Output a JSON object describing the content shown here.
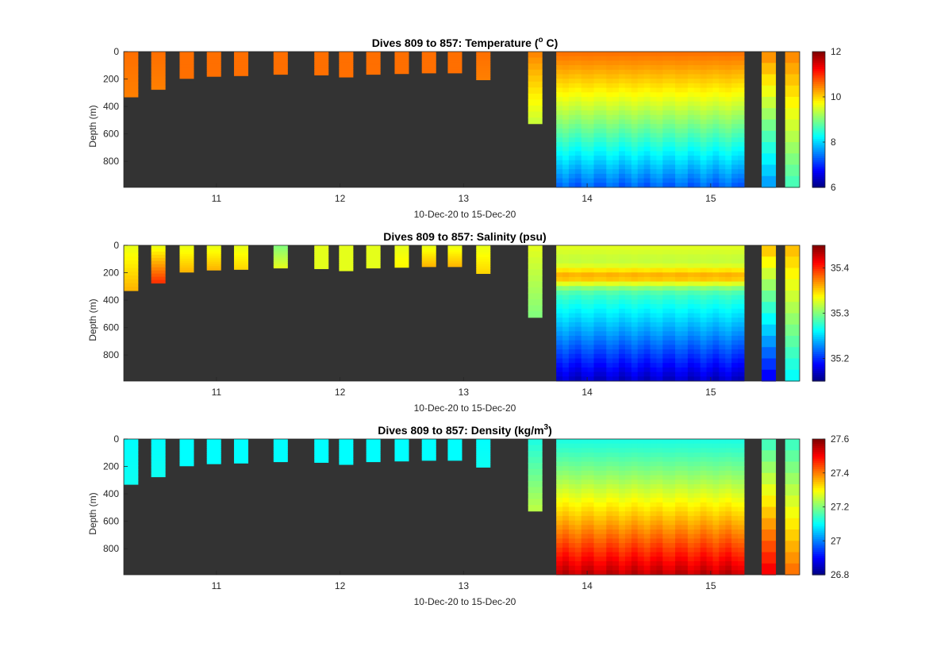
{
  "chart_data": [
    {
      "type": "heatmap",
      "title_main": "Dives 809 to 857: Temperature (",
      "title_sup": "o",
      "title_end": " C)",
      "xlabel": "10-Dec-20 to 15-Dec-20",
      "ylabel": "Depth (m)",
      "xlim": [
        10.25,
        15.72
      ],
      "ylim": [
        0,
        990
      ],
      "y_reversed": true,
      "xticks": [
        11,
        12,
        13,
        14,
        15
      ],
      "yticks": [
        0,
        200,
        400,
        600,
        800
      ],
      "colorbar": {
        "min": 6,
        "max": 12,
        "ticks": [
          6,
          8,
          10,
          12
        ],
        "colormap": "jet"
      },
      "background_color": "#333333",
      "profiles": [
        {
          "t": 10.31,
          "max_depth": 330,
          "value_surface": 10.6,
          "value_bottom": 10.5
        },
        {
          "t": 10.53,
          "max_depth": 275,
          "value_surface": 10.6,
          "value_bottom": 10.5
        },
        {
          "t": 10.76,
          "max_depth": 195,
          "value_surface": 10.6,
          "value_bottom": 10.6
        },
        {
          "t": 10.98,
          "max_depth": 180,
          "value_surface": 10.6,
          "value_bottom": 10.6
        },
        {
          "t": 11.2,
          "max_depth": 175,
          "value_surface": 10.6,
          "value_bottom": 10.6
        },
        {
          "t": 11.52,
          "max_depth": 165,
          "value_surface": 10.6,
          "value_bottom": 10.6
        },
        {
          "t": 11.85,
          "max_depth": 170,
          "value_surface": 10.6,
          "value_bottom": 10.6
        },
        {
          "t": 12.05,
          "max_depth": 185,
          "value_surface": 10.6,
          "value_bottom": 10.6
        },
        {
          "t": 12.27,
          "max_depth": 165,
          "value_surface": 10.6,
          "value_bottom": 10.6
        },
        {
          "t": 12.5,
          "max_depth": 160,
          "value_surface": 10.6,
          "value_bottom": 10.6
        },
        {
          "t": 12.72,
          "max_depth": 155,
          "value_surface": 10.6,
          "value_bottom": 10.6
        },
        {
          "t": 12.93,
          "max_depth": 155,
          "value_surface": 10.6,
          "value_bottom": 10.6
        },
        {
          "t": 13.16,
          "max_depth": 205,
          "value_surface": 10.6,
          "value_bottom": 10.5
        },
        {
          "t": 13.58,
          "max_depth": 525,
          "value_surface": 10.5,
          "value_bottom": 9.4
        },
        {
          "t": 15.47,
          "max_depth": 990,
          "value_surface": 10.5,
          "value_bottom": 7.6
        },
        {
          "t": 15.66,
          "max_depth": 990,
          "value_surface": 10.5,
          "value_bottom": 8.6
        }
      ],
      "dense_block": {
        "t_start": 13.75,
        "t_end": 15.27,
        "max_depth": 990,
        "value_surface": 10.6,
        "value_bottom": 7.3
      }
    },
    {
      "type": "heatmap",
      "title_main": "Dives 809 to 857: Salinity (psu)",
      "title_sup": "",
      "title_end": "",
      "xlabel": "10-Dec-20 to 15-Dec-20",
      "ylabel": "Depth (m)",
      "xlim": [
        10.25,
        15.72
      ],
      "ylim": [
        0,
        990
      ],
      "y_reversed": true,
      "xticks": [
        11,
        12,
        13,
        14,
        15
      ],
      "yticks": [
        0,
        200,
        400,
        600,
        800
      ],
      "colorbar": {
        "min": 35.15,
        "max": 35.45,
        "ticks": [
          35.2,
          35.3,
          35.4
        ],
        "colormap": "jet"
      },
      "background_color": "#333333",
      "profiles": [
        {
          "t": 10.31,
          "max_depth": 330,
          "value_surface": 35.33,
          "value_bottom": 35.36
        },
        {
          "t": 10.53,
          "max_depth": 275,
          "value_surface": 35.33,
          "value_bottom": 35.4
        },
        {
          "t": 10.76,
          "max_depth": 195,
          "value_surface": 35.33,
          "value_bottom": 35.36
        },
        {
          "t": 10.98,
          "max_depth": 180,
          "value_surface": 35.33,
          "value_bottom": 35.36
        },
        {
          "t": 11.2,
          "max_depth": 175,
          "value_surface": 35.33,
          "value_bottom": 35.35
        },
        {
          "t": 11.52,
          "max_depth": 165,
          "value_surface": 35.3,
          "value_bottom": 35.33
        },
        {
          "t": 11.85,
          "max_depth": 170,
          "value_surface": 35.33,
          "value_bottom": 35.33
        },
        {
          "t": 12.05,
          "max_depth": 185,
          "value_surface": 35.33,
          "value_bottom": 35.33
        },
        {
          "t": 12.27,
          "max_depth": 165,
          "value_surface": 35.33,
          "value_bottom": 35.33
        },
        {
          "t": 12.5,
          "max_depth": 160,
          "value_surface": 35.33,
          "value_bottom": 35.34
        },
        {
          "t": 12.72,
          "max_depth": 155,
          "value_surface": 35.33,
          "value_bottom": 35.36
        },
        {
          "t": 12.93,
          "max_depth": 155,
          "value_surface": 35.33,
          "value_bottom": 35.36
        },
        {
          "t": 13.16,
          "max_depth": 205,
          "value_surface": 35.33,
          "value_bottom": 35.35
        },
        {
          "t": 13.58,
          "max_depth": 525,
          "value_surface": 35.33,
          "value_bottom": 35.3
        },
        {
          "t": 15.47,
          "max_depth": 990,
          "value_surface": 35.36,
          "value_bottom": 35.18
        },
        {
          "t": 15.66,
          "max_depth": 990,
          "value_surface": 35.36,
          "value_bottom": 35.26
        }
      ],
      "dense_block": {
        "t_start": 13.75,
        "t_end": 15.27,
        "max_depth": 990,
        "value_surface": 35.33,
        "value_bottom": 35.17,
        "max_layer_depth": 230,
        "max_layer_value": 35.39
      }
    },
    {
      "type": "heatmap",
      "title_main": "Dives 809 to 857: Density (kg/m",
      "title_sup": "3",
      "title_end": ")",
      "xlabel": "10-Dec-20 to 15-Dec-20",
      "ylabel": "Depth (m)",
      "xlim": [
        10.25,
        15.72
      ],
      "ylim": [
        0,
        990
      ],
      "y_reversed": true,
      "xticks": [
        11,
        12,
        13,
        14,
        15
      ],
      "yticks": [
        0,
        200,
        400,
        600,
        800
      ],
      "colorbar": {
        "min": 26.8,
        "max": 27.6,
        "ticks": [
          26.8,
          27,
          27.2,
          27.4,
          27.6
        ],
        "colormap": "jet"
      },
      "background_color": "#333333",
      "profiles": [
        {
          "t": 10.31,
          "max_depth": 330,
          "value_surface": 27.1,
          "value_bottom": 27.11
        },
        {
          "t": 10.53,
          "max_depth": 275,
          "value_surface": 27.1,
          "value_bottom": 27.11
        },
        {
          "t": 10.76,
          "max_depth": 195,
          "value_surface": 27.1,
          "value_bottom": 27.1
        },
        {
          "t": 10.98,
          "max_depth": 180,
          "value_surface": 27.1,
          "value_bottom": 27.1
        },
        {
          "t": 11.2,
          "max_depth": 175,
          "value_surface": 27.1,
          "value_bottom": 27.1
        },
        {
          "t": 11.52,
          "max_depth": 165,
          "value_surface": 27.1,
          "value_bottom": 27.1
        },
        {
          "t": 11.85,
          "max_depth": 170,
          "value_surface": 27.1,
          "value_bottom": 27.1
        },
        {
          "t": 12.05,
          "max_depth": 185,
          "value_surface": 27.1,
          "value_bottom": 27.1
        },
        {
          "t": 12.27,
          "max_depth": 165,
          "value_surface": 27.1,
          "value_bottom": 27.1
        },
        {
          "t": 12.5,
          "max_depth": 160,
          "value_surface": 27.1,
          "value_bottom": 27.1
        },
        {
          "t": 12.72,
          "max_depth": 155,
          "value_surface": 27.1,
          "value_bottom": 27.1
        },
        {
          "t": 12.93,
          "max_depth": 155,
          "value_surface": 27.1,
          "value_bottom": 27.1
        },
        {
          "t": 13.16,
          "max_depth": 205,
          "value_surface": 27.1,
          "value_bottom": 27.11
        },
        {
          "t": 13.58,
          "max_depth": 525,
          "value_surface": 27.12,
          "value_bottom": 27.25
        },
        {
          "t": 15.47,
          "max_depth": 990,
          "value_surface": 27.14,
          "value_bottom": 27.52
        },
        {
          "t": 15.66,
          "max_depth": 990,
          "value_surface": 27.14,
          "value_bottom": 27.42
        }
      ],
      "dense_block": {
        "t_start": 13.75,
        "t_end": 15.27,
        "max_depth": 990,
        "value_surface": 27.12,
        "value_bottom": 27.55
      }
    }
  ]
}
